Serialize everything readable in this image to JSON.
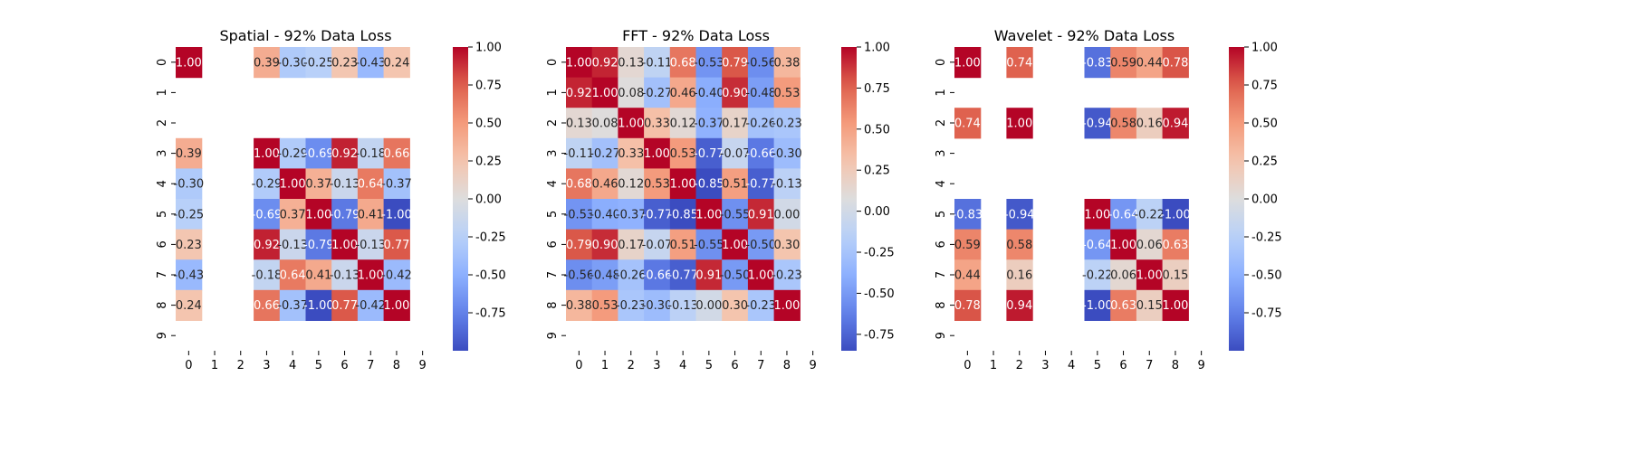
{
  "chart_data": [
    {
      "type": "heatmap",
      "title": "Spatial - 92% Data Loss",
      "x_categories": [
        "0",
        "1",
        "2",
        "3",
        "4",
        "5",
        "6",
        "7",
        "8",
        "9"
      ],
      "y_categories": [
        "0",
        "1",
        "2",
        "3",
        "4",
        "5",
        "6",
        "7",
        "8",
        "9"
      ],
      "colorbar": {
        "min": -1.0,
        "max": 1.0,
        "ticks": [
          "-0.75",
          "-0.50",
          "-0.25",
          "0.00",
          "0.25",
          "0.50",
          "0.75",
          "1.00"
        ]
      },
      "values": [
        [
          1.0,
          null,
          null,
          0.39,
          -0.3,
          -0.25,
          0.23,
          -0.43,
          0.24,
          null
        ],
        [
          null,
          null,
          null,
          null,
          null,
          null,
          null,
          null,
          null,
          null
        ],
        [
          null,
          null,
          null,
          null,
          null,
          null,
          null,
          null,
          null,
          null
        ],
        [
          0.39,
          null,
          null,
          1.0,
          -0.29,
          -0.69,
          0.92,
          -0.18,
          0.66,
          null
        ],
        [
          -0.3,
          null,
          null,
          -0.29,
          1.0,
          0.37,
          -0.13,
          0.64,
          -0.37,
          null
        ],
        [
          -0.25,
          null,
          null,
          -0.69,
          0.37,
          1.0,
          -0.79,
          0.41,
          -1.0,
          null
        ],
        [
          0.23,
          null,
          null,
          0.92,
          -0.13,
          -0.79,
          1.0,
          -0.13,
          0.77,
          null
        ],
        [
          -0.43,
          null,
          null,
          -0.18,
          0.64,
          0.41,
          -0.13,
          1.0,
          -0.42,
          null
        ],
        [
          0.24,
          null,
          null,
          0.66,
          -0.37,
          -1.0,
          0.77,
          -0.42,
          1.0,
          null
        ],
        [
          null,
          null,
          null,
          null,
          null,
          null,
          null,
          null,
          null,
          null
        ]
      ]
    },
    {
      "type": "heatmap",
      "title": "FFT - 92% Data Loss",
      "x_categories": [
        "0",
        "1",
        "2",
        "3",
        "4",
        "5",
        "6",
        "7",
        "8",
        "9"
      ],
      "y_categories": [
        "0",
        "1",
        "2",
        "3",
        "4",
        "5",
        "6",
        "7",
        "8",
        "9"
      ],
      "colorbar": {
        "min": -0.85,
        "max": 1.0,
        "ticks": [
          "-0.75",
          "-0.50",
          "-0.25",
          "0.00",
          "0.25",
          "0.50",
          "0.75",
          "1.00"
        ]
      },
      "values": [
        [
          1.0,
          0.92,
          0.13,
          -0.11,
          0.68,
          -0.53,
          0.79,
          -0.56,
          0.38,
          null
        ],
        [
          0.92,
          1.0,
          0.08,
          -0.27,
          0.46,
          -0.4,
          0.9,
          -0.48,
          0.53,
          null
        ],
        [
          0.13,
          0.08,
          1.0,
          0.33,
          0.12,
          -0.37,
          0.17,
          -0.26,
          -0.23,
          null
        ],
        [
          -0.11,
          -0.27,
          0.33,
          1.0,
          0.53,
          -0.77,
          -0.07,
          -0.66,
          -0.3,
          null
        ],
        [
          0.68,
          0.46,
          0.12,
          0.53,
          1.0,
          -0.85,
          0.51,
          -0.77,
          -0.13,
          null
        ],
        [
          -0.53,
          -0.4,
          -0.37,
          -0.77,
          -0.85,
          1.0,
          -0.55,
          0.91,
          0.0,
          null
        ],
        [
          0.79,
          0.9,
          0.17,
          -0.07,
          0.51,
          -0.55,
          1.0,
          -0.5,
          0.3,
          null
        ],
        [
          -0.56,
          -0.48,
          -0.26,
          -0.66,
          -0.77,
          0.91,
          -0.5,
          1.0,
          -0.23,
          null
        ],
        [
          0.38,
          0.53,
          -0.23,
          -0.3,
          -0.13,
          0.0,
          0.3,
          -0.23,
          1.0,
          null
        ],
        [
          null,
          null,
          null,
          null,
          null,
          null,
          null,
          null,
          null,
          null
        ]
      ]
    },
    {
      "type": "heatmap",
      "title": "Wavelet - 92% Data Loss",
      "x_categories": [
        "0",
        "1",
        "2",
        "3",
        "4",
        "5",
        "6",
        "7",
        "8",
        "9"
      ],
      "y_categories": [
        "0",
        "1",
        "2",
        "3",
        "4",
        "5",
        "6",
        "7",
        "8",
        "9"
      ],
      "colorbar": {
        "min": -1.0,
        "max": 1.0,
        "ticks": [
          "-0.75",
          "-0.50",
          "-0.25",
          "0.00",
          "0.25",
          "0.50",
          "0.75",
          "1.00"
        ]
      },
      "values": [
        [
          1.0,
          null,
          0.74,
          null,
          null,
          -0.83,
          0.59,
          0.44,
          0.78,
          null
        ],
        [
          null,
          null,
          null,
          null,
          null,
          null,
          null,
          null,
          null,
          null
        ],
        [
          0.74,
          null,
          1.0,
          null,
          null,
          -0.94,
          0.58,
          0.16,
          0.94,
          null
        ],
        [
          null,
          null,
          null,
          null,
          null,
          null,
          null,
          null,
          null,
          null
        ],
        [
          null,
          null,
          null,
          null,
          null,
          null,
          null,
          null,
          null,
          null
        ],
        [
          -0.83,
          null,
          -0.94,
          null,
          null,
          1.0,
          -0.64,
          -0.22,
          -1.0,
          null
        ],
        [
          0.59,
          null,
          0.58,
          null,
          null,
          -0.64,
          1.0,
          0.06,
          0.63,
          null
        ],
        [
          0.44,
          null,
          0.16,
          null,
          null,
          -0.22,
          0.06,
          1.0,
          0.15,
          null
        ],
        [
          0.78,
          null,
          0.94,
          null,
          null,
          -1.0,
          0.63,
          0.15,
          1.0,
          null
        ],
        [
          null,
          null,
          null,
          null,
          null,
          null,
          null,
          null,
          null,
          null
        ]
      ]
    }
  ]
}
